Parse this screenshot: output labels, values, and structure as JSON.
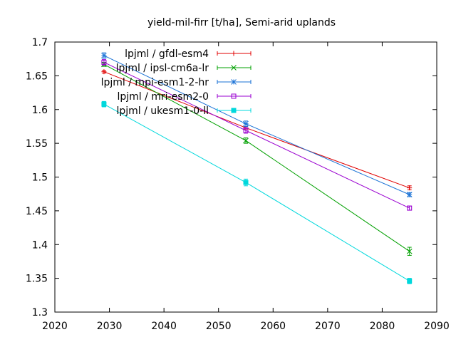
{
  "chart_data": {
    "type": "line",
    "title": "yield-mil-firr [t/ha], Semi-arid uplands",
    "xlabel": "",
    "ylabel": "",
    "xlim": [
      2020,
      2090
    ],
    "ylim": [
      1.3,
      1.7
    ],
    "xticks": [
      "2020",
      "2030",
      "2040",
      "2050",
      "2060",
      "2070",
      "2080",
      "2090"
    ],
    "yticks": [
      "1.3",
      "1.35",
      "1.4",
      "1.45",
      "1.5",
      "1.55",
      "1.6",
      "1.65",
      "1.7"
    ],
    "grid": false,
    "legend_position": "top-left",
    "x": [
      2029,
      2055,
      2085
    ],
    "series": [
      {
        "name": "lpjml / gfdl-esm4",
        "color": "#e00000",
        "marker": "plus",
        "values": [
          1.656,
          1.573,
          1.484
        ],
        "err": [
          0.002,
          0.002,
          0.003
        ]
      },
      {
        "name": "lpjml / ipsl-cm6a-lr",
        "color": "#00a000",
        "marker": "cross",
        "values": [
          1.667,
          1.554,
          1.39
        ],
        "err": [
          0.003,
          0.004,
          0.006
        ]
      },
      {
        "name": "lpjml / mpi-esm1-2-hr",
        "color": "#1a72d6",
        "marker": "star",
        "values": [
          1.68,
          1.579,
          1.474
        ],
        "err": [
          0.004,
          0.004,
          0.003
        ]
      },
      {
        "name": "lpjml / mri-esm2-0",
        "color": "#9a00d0",
        "marker": "square",
        "values": [
          1.67,
          1.569,
          1.454
        ],
        "err": [
          0.004,
          0.004,
          0.003
        ]
      },
      {
        "name": "lpjml / ukesm1-0-ll",
        "color": "#00d8dc",
        "marker": "filled-square",
        "values": [
          1.608,
          1.492,
          1.346
        ],
        "err": [
          0.004,
          0.005,
          0.004
        ]
      }
    ]
  }
}
